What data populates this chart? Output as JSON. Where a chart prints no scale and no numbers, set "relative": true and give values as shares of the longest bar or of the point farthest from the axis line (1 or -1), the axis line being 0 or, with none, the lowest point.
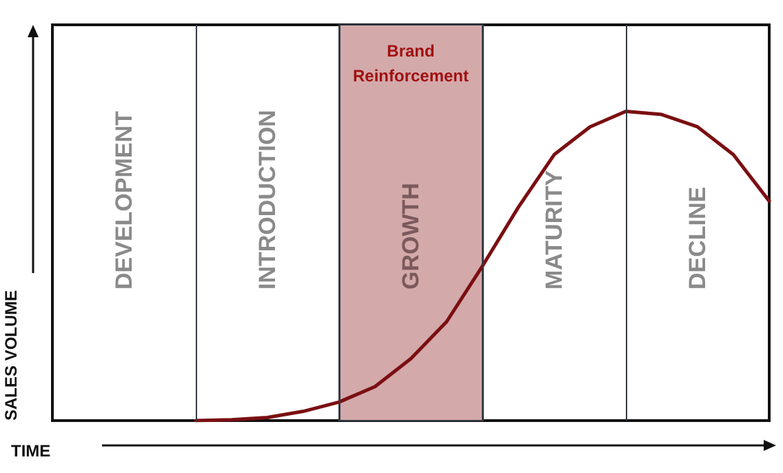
{
  "chart_data": {
    "type": "line",
    "relative": true,
    "xlabel": "TIME",
    "ylabel": "SALES VOLUME",
    "grid": "x",
    "marker": "none",
    "line_style": "solid",
    "categories": [
      null,
      null,
      "DEVELOPMENT",
      null,
      null,
      null,
      "INTRODUCTION",
      null,
      null,
      null,
      "GROWTH",
      null,
      null,
      null,
      "MATURITY",
      null,
      null,
      null,
      "DECLINE",
      null,
      null
    ],
    "series": [
      {
        "color": "#7a0f12",
        "values": [
          null,
          null,
          null,
          null,
          0,
          0.003,
          0.01,
          0.03,
          0.06,
          0.11,
          0.2,
          0.32,
          0.5,
          0.69,
          0.86,
          0.95,
          1,
          0.99,
          0.95,
          0.86,
          0.71
        ]
      }
    ],
    "annotations": [
      "Brand Reinforcement"
    ]
  }
}
